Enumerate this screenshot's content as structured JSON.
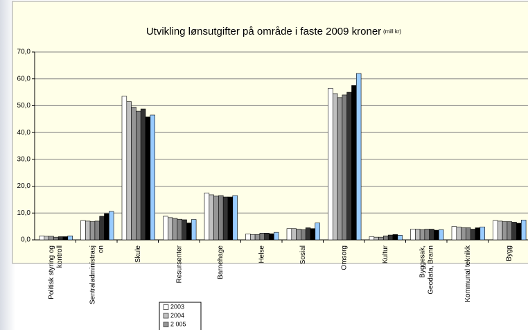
{
  "chart_data": {
    "type": "bar",
    "title": "Utvikling lønsutgifter på område i faste 2009 kroner",
    "subtitle": "(mill kr)",
    "categories": [
      "Politisk styring og\nkontroll",
      "Sentraladministrasj\non",
      "Skule",
      "Resursenter",
      "Barnehage",
      "Helse",
      "Sosial",
      "Omsorg",
      "Kultur",
      "Byggesak,\nGeodata, Brann",
      "Kommunal teknikk",
      "Bygg"
    ],
    "series": [
      {
        "name": "2003",
        "color": "#ffffff",
        "values": [
          1.5,
          7.2,
          53.5,
          8.8,
          17.5,
          2.2,
          4.2,
          56.5,
          1.2,
          4.0,
          5.0,
          7.2
        ]
      },
      {
        "name": "2004",
        "color": "#c0c0c0",
        "values": [
          1.4,
          7.0,
          51.5,
          8.3,
          16.8,
          2.0,
          4.2,
          54.5,
          1.0,
          4.0,
          4.8,
          7.0
        ]
      },
      {
        "name": "2 005",
        "color": "#969696",
        "values": [
          1.4,
          6.8,
          49.5,
          8.0,
          16.3,
          2.0,
          4.0,
          53.0,
          1.0,
          3.8,
          4.5,
          6.8
        ]
      },
      {
        "color": "#808080",
        "values": [
          1.0,
          7.0,
          48.0,
          7.7,
          16.5,
          2.5,
          3.8,
          54.0,
          1.5,
          4.0,
          4.5,
          6.8
        ]
      },
      {
        "color": "#333333",
        "values": [
          1.2,
          8.8,
          48.8,
          7.5,
          16.0,
          2.5,
          4.5,
          55.0,
          1.8,
          4.0,
          4.0,
          6.6
        ]
      },
      {
        "color": "#000000",
        "values": [
          1.2,
          9.8,
          45.8,
          6.3,
          16.0,
          2.3,
          4.2,
          57.5,
          2.0,
          3.6,
          4.5,
          6.2
        ]
      },
      {
        "color": "#99ccff",
        "values": [
          1.5,
          10.6,
          46.5,
          7.6,
          16.5,
          2.8,
          6.3,
          62.0,
          1.7,
          3.8,
          4.8,
          7.4
        ]
      }
    ],
    "ylim": [
      0,
      70
    ],
    "yticks": [
      {
        "value": 0,
        "label": "0,0"
      },
      {
        "value": 10,
        "label": "10,0"
      },
      {
        "value": 20,
        "label": "20,0"
      },
      {
        "value": 30,
        "label": "30,0"
      },
      {
        "value": 40,
        "label": "40,0"
      },
      {
        "value": 50,
        "label": "50,0"
      },
      {
        "value": 60,
        "label": "60,0"
      },
      {
        "value": 70,
        "label": "70,0"
      }
    ],
    "grid": true
  }
}
